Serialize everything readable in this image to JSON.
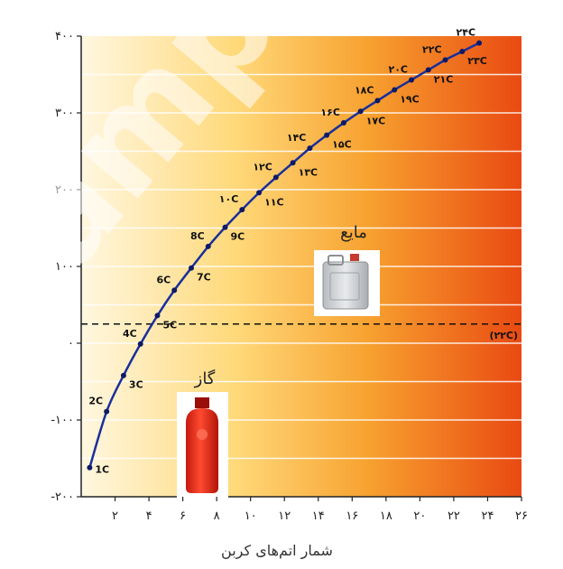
{
  "chart_data": {
    "type": "line",
    "xlabel": "شمار اتم‌های کربن",
    "ylabel": "",
    "xlim": [
      0,
      26
    ],
    "ylim": [
      -200,
      400
    ],
    "x_ticks": [
      2,
      4,
      6,
      8,
      10,
      12,
      14,
      16,
      18,
      20,
      22,
      24,
      26
    ],
    "x_tick_labels": [
      "۲",
      "۴",
      "۶",
      "۸",
      "۱۰",
      "۱۲",
      "۱۴",
      "۱۶",
      "۱۸",
      "۲۰",
      "۲۲",
      "۲۴",
      "۲۶"
    ],
    "y_ticks": [
      -200,
      -100,
      0,
      100,
      200,
      300,
      400
    ],
    "y_tick_labels": [
      "-۲۰۰",
      "-۱۰۰",
      "۰",
      "۱۰۰",
      "۲۰۰",
      "۳۰۰",
      "۴۰۰"
    ],
    "grid": true,
    "reference_line": {
      "y": 25,
      "label": "(۲۲C)"
    },
    "region_labels": {
      "gas": "گاز",
      "liquid": "مایع"
    },
    "watermark": "Sample",
    "series": [
      {
        "points": [
          {
            "x": 0.5,
            "y": -162,
            "label": "1C"
          },
          {
            "x": 1.5,
            "y": -89,
            "label": "2C"
          },
          {
            "x": 2.5,
            "y": -42,
            "label": "3C"
          },
          {
            "x": 3.5,
            "y": -1,
            "label": "4C"
          },
          {
            "x": 4.5,
            "y": 36,
            "label": "5C"
          },
          {
            "x": 5.5,
            "y": 69,
            "label": "6C"
          },
          {
            "x": 6.5,
            "y": 98,
            "label": "7C"
          },
          {
            "x": 7.5,
            "y": 126,
            "label": "8C"
          },
          {
            "x": 8.5,
            "y": 151,
            "label": "9C"
          },
          {
            "x": 9.5,
            "y": 174,
            "label": "۱۰C"
          },
          {
            "x": 10.5,
            "y": 196,
            "label": "۱۱C"
          },
          {
            "x": 11.5,
            "y": 216,
            "label": "۱۲C"
          },
          {
            "x": 12.5,
            "y": 235,
            "label": "۱۳C"
          },
          {
            "x": 13.5,
            "y": 254,
            "label": "۱۴C"
          },
          {
            "x": 14.5,
            "y": 271,
            "label": "۱۵C"
          },
          {
            "x": 15.5,
            "y": 287,
            "label": "۱۶C"
          },
          {
            "x": 16.5,
            "y": 302,
            "label": "۱۷C"
          },
          {
            "x": 17.5,
            "y": 316,
            "label": "۱۸C"
          },
          {
            "x": 18.5,
            "y": 330,
            "label": "۱۹C"
          },
          {
            "x": 19.5,
            "y": 343,
            "label": "۲۰C"
          },
          {
            "x": 20.5,
            "y": 356,
            "label": "۲۱C"
          },
          {
            "x": 21.5,
            "y": 369,
            "label": "۲۲C"
          },
          {
            "x": 22.5,
            "y": 380,
            "label": "۲۳C"
          },
          {
            "x": 23.5,
            "y": 391,
            "label": "۲۴C"
          }
        ]
      }
    ]
  }
}
